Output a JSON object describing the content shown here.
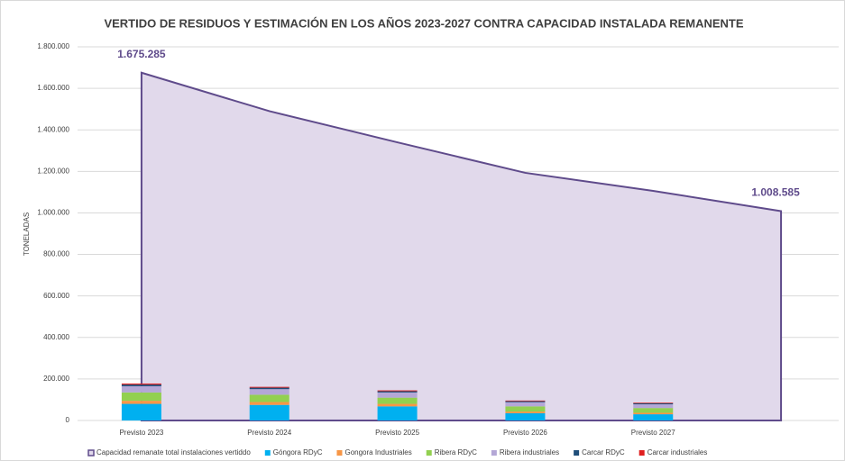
{
  "chart_data": {
    "type": "bar",
    "title": "VERTIDO DE RESIDUOS Y ESTIMACIÓN EN LOS AÑOS 2023-2027 CONTRA CAPACIDAD INSTALADA REMANENTE",
    "y_label": "TONELADAS",
    "categories": [
      "Previsto 2023",
      "Previsto 2024",
      "Previsto 2025",
      "Previsto 2026",
      "Previsto 2027",
      null
    ],
    "ylim": [
      0,
      1800000
    ],
    "yticks": [
      0,
      {
        "value": 200000,
        "label": "200.000"
      },
      {
        "value": 400000,
        "label": "400.000"
      },
      {
        "value": 600000,
        "label": "600.000"
      },
      {
        "value": 800000,
        "label": "800.000"
      },
      {
        "value": 1000000,
        "label": "1.000.000"
      },
      {
        "value": 1200000,
        "label": "1.200.000"
      },
      {
        "value": 1400000,
        "label": "1.400.000"
      },
      {
        "value": 1600000,
        "label": "1.600.000"
      },
      {
        "value": 1800000,
        "label": "1.800.000"
      }
    ],
    "grid": true,
    "legend": "bottom",
    "series": [
      {
        "name": "Capacidad remanate total instalaciones vertiddo",
        "type": "area",
        "color": "#5f4b8b",
        "fill": "#e1d9eb",
        "values": [
          1675285,
          1490000,
          1340000,
          1193000,
          1106000,
          1008585
        ],
        "value_labels": [
          "1.675.285",
          null,
          null,
          null,
          null,
          "1.008.585"
        ]
      },
      {
        "name": "Góngora RDyC",
        "type": "bar",
        "color": "#00b0f0",
        "values": [
          80000,
          75000,
          68000,
          35000,
          30000,
          null
        ]
      },
      {
        "name": "Gongora Industriales",
        "type": "bar",
        "color": "#f79646",
        "values": [
          15000,
          14000,
          12000,
          8000,
          7000,
          null
        ]
      },
      {
        "name": "Ribera RDyC",
        "type": "bar",
        "color": "#92d050",
        "values": [
          40000,
          35000,
          30000,
          25000,
          23000,
          null
        ]
      },
      {
        "name": "Ribera industriales",
        "type": "bar",
        "color": "#b4a7d6",
        "values": [
          30000,
          27000,
          25000,
          20000,
          18000,
          null
        ]
      },
      {
        "name": "Carcar RDyC",
        "type": "bar",
        "color": "#1f4e79",
        "values": [
          8000,
          7000,
          6000,
          5000,
          5000,
          null
        ]
      },
      {
        "name": "Carcar industriales",
        "type": "bar",
        "color": "#e02020",
        "values": [
          5000,
          4000,
          4000,
          3000,
          3000,
          null
        ]
      }
    ]
  }
}
